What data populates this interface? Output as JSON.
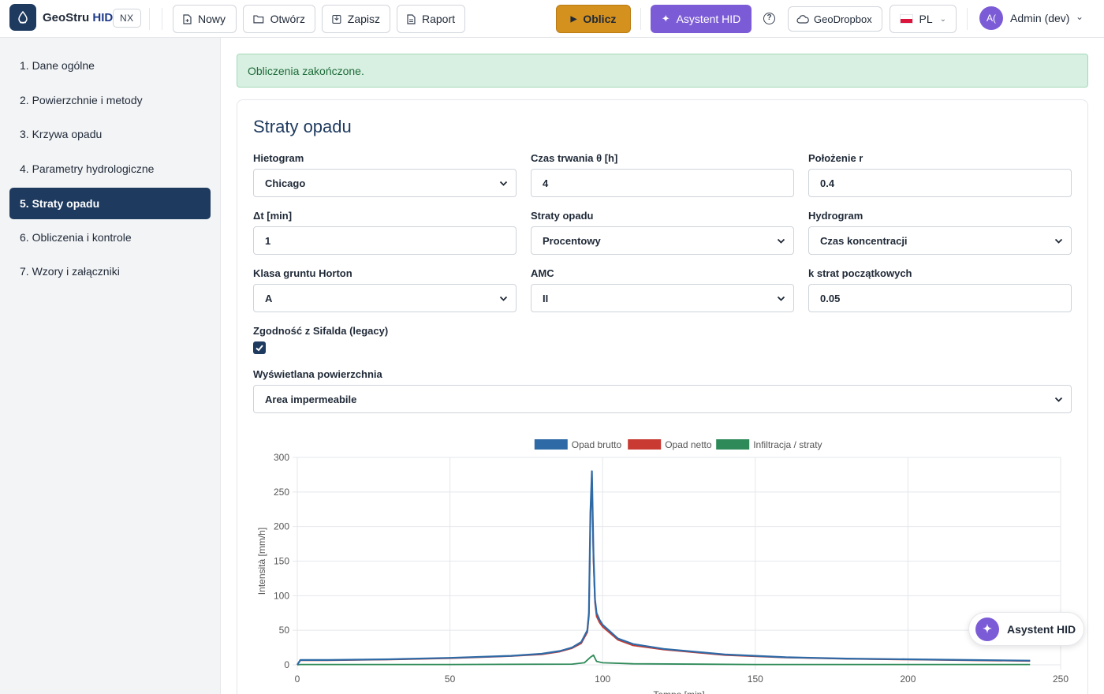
{
  "header": {
    "brand_main": "GeoStru",
    "brand_accent": "HID",
    "badge": "NX",
    "buttons": {
      "new": "Nowy",
      "open": "Otwórz",
      "save": "Zapisz",
      "report": "Raport"
    },
    "calculate": "Oblicz",
    "assistant": "Asystent HID",
    "help": "?",
    "dropbox": "GeoDropbox",
    "language": "PL",
    "user_initials": "A(",
    "user_name": "Admin (dev)"
  },
  "sidebar": {
    "items": [
      {
        "label": "1. Dane ogólne"
      },
      {
        "label": "2. Powierzchnie i metody"
      },
      {
        "label": "3. Krzywa opadu"
      },
      {
        "label": "4. Parametry hydrologiczne"
      },
      {
        "label": "5. Straty opadu"
      },
      {
        "label": "6. Obliczenia i kontrole"
      },
      {
        "label": "7. Wzory i załączniki"
      }
    ],
    "active_index": 4
  },
  "alert": {
    "text": "Obliczenia zakończone."
  },
  "form": {
    "title": "Straty opadu",
    "fields": {
      "hietogram": {
        "label": "Hietogram",
        "value": "Chicago"
      },
      "duration": {
        "label": "Czas trwania θ [h]",
        "value": "4"
      },
      "position": {
        "label": "Położenie r",
        "value": "0.4"
      },
      "dt": {
        "label": "Δt [min]",
        "value": "1"
      },
      "losses": {
        "label": "Straty opadu",
        "value": "Procentowy"
      },
      "hydrogram": {
        "label": "Hydrogram",
        "value": "Czas koncentracji"
      },
      "horton": {
        "label": "Klasa gruntu Horton",
        "value": "A"
      },
      "amc": {
        "label": "AMC",
        "value": "II"
      },
      "k_initial": {
        "label": "k strat początkowych",
        "value": "0.05"
      },
      "sifalda": {
        "label": "Zgodność z Sifalda (legacy)",
        "checked": true
      },
      "surface": {
        "label": "Wyświetlana powierzchnia",
        "value": "Area impermeabile"
      }
    }
  },
  "chart_data": {
    "type": "line",
    "title": "",
    "xlabel": "Tempo [min]",
    "ylabel": "Intensità [mm/h]",
    "xlim": [
      0,
      250
    ],
    "ylim": [
      0,
      300
    ],
    "xticks": [
      0,
      50,
      100,
      150,
      200,
      250
    ],
    "yticks": [
      0,
      50,
      100,
      150,
      200,
      250,
      300
    ],
    "grid": true,
    "legend_position": "top",
    "series": [
      {
        "name": "Opad brutto",
        "color": "#2e6aa6",
        "x": [
          0,
          1,
          10,
          30,
          50,
          70,
          80,
          86,
          90,
          93,
          95,
          95.5,
          96,
          96.5,
          97,
          97.5,
          98,
          99,
          100,
          105,
          110,
          120,
          140,
          160,
          180,
          200,
          220,
          240
        ],
        "y": [
          0,
          7,
          7,
          8,
          10,
          13,
          16,
          20,
          25,
          33,
          50,
          75,
          220,
          280,
          160,
          95,
          75,
          65,
          58,
          38,
          30,
          23,
          15,
          11,
          9,
          8,
          7,
          6
        ]
      },
      {
        "name": "Opad netto",
        "color": "#c83a32",
        "x": [
          0,
          1,
          10,
          30,
          50,
          70,
          80,
          86,
          90,
          93,
          95,
          95.5,
          96,
          96.5,
          97,
          97.5,
          98,
          99,
          100,
          105,
          110,
          120,
          140,
          160,
          180,
          200,
          220,
          240
        ],
        "y": [
          0,
          6.5,
          6.5,
          7.5,
          9.5,
          12.5,
          15,
          19,
          24,
          31,
          47,
          70,
          209,
          266,
          150,
          90,
          70,
          61,
          55,
          36,
          28,
          22,
          14,
          10.5,
          8.5,
          7.5,
          6.5,
          5.5
        ]
      },
      {
        "name": "Infiltracja / straty",
        "color": "#2e8a58",
        "x": [
          0,
          1,
          50,
          90,
          94,
          96,
          97,
          98,
          100,
          110,
          150,
          200,
          240
        ],
        "y": [
          0,
          0.5,
          0.5,
          1,
          3,
          11,
          14,
          5,
          3,
          1.5,
          0.5,
          0.5,
          0.5
        ]
      }
    ]
  }
}
